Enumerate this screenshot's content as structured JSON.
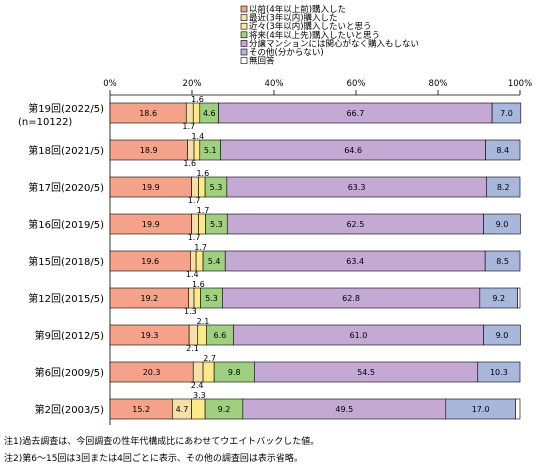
{
  "chart_data": {
    "type": "bar",
    "orientation": "horizontal",
    "stacked": true,
    "percent_scale": true,
    "xlim": [
      0,
      100
    ],
    "x_ticks": [
      "0%",
      "20%",
      "40%",
      "60%",
      "80%",
      "100%"
    ],
    "x_tick_values": [
      0,
      20,
      40,
      60,
      80,
      100
    ],
    "categories": [
      [
        "第19回(2022/5)",
        "(n=10122)"
      ],
      [
        "第18回(2021/5)"
      ],
      [
        "第17回(2020/5)"
      ],
      [
        "第16回(2019/5)"
      ],
      [
        "第15回(2018/5)"
      ],
      [
        "第12回(2015/5)"
      ],
      [
        "第9回(2012/5)"
      ],
      [
        "第6回(2009/5)"
      ],
      [
        "第2回(2003/5)"
      ]
    ],
    "series": [
      {
        "name": "以前(4年以上前)購入した",
        "color": "#f4a28a",
        "values": [
          18.6,
          18.9,
          19.9,
          19.9,
          19.6,
          19.2,
          19.3,
          20.3,
          15.2
        ],
        "labels": [
          "18.6",
          "18.9",
          "19.9",
          "19.9",
          "19.6",
          "19.2",
          "19.3",
          "20.3",
          "15.2"
        ]
      },
      {
        "name": "最近(3年以内)購入した",
        "color": "#f7e0a8",
        "values": [
          1.7,
          1.6,
          1.7,
          1.7,
          1.4,
          1.3,
          2.1,
          2.4,
          4.7
        ],
        "labels": [
          "1.7",
          "1.6",
          "1.7",
          "1.7",
          "1.4",
          "1.3",
          "2.1",
          "2.4",
          "4.7"
        ]
      },
      {
        "name": "近々(3年以内)購入したいと思う",
        "color": "#fde98a",
        "values": [
          1.6,
          1.4,
          1.6,
          1.7,
          1.7,
          1.6,
          2.1,
          2.7,
          3.3
        ],
        "labels": [
          "1.6",
          "1.4",
          "1.6",
          "1.7",
          "1.7",
          "1.6",
          "2.1",
          "2.7",
          "3.3"
        ]
      },
      {
        "name": "将来(4年以上先)購入したいと思う",
        "color": "#9ed07f",
        "values": [
          4.6,
          5.1,
          5.3,
          5.3,
          5.4,
          5.3,
          6.6,
          9.8,
          9.2
        ],
        "labels": [
          "4.6",
          "5.1",
          "5.3",
          "5.3",
          "5.4",
          "5.3",
          "6.6",
          "9.8",
          "9.2"
        ]
      },
      {
        "name": "分譲マンションには関心がなく購入もしない",
        "color": "#c4a9d4",
        "values": [
          66.7,
          64.6,
          63.3,
          62.5,
          63.4,
          62.8,
          61.0,
          54.5,
          49.5
        ],
        "labels": [
          "66.7",
          "64.6",
          "63.3",
          "62.5",
          "63.4",
          "62.8",
          "61.0",
          "54.5",
          "49.5"
        ]
      },
      {
        "name": "その他(分からない)",
        "color": "#a8b7db",
        "values": [
          7.0,
          8.4,
          8.2,
          9.0,
          8.5,
          9.2,
          9.0,
          10.3,
          17.0
        ],
        "labels": [
          "7.0",
          "8.4",
          "8.2",
          "9.0",
          "8.5",
          "9.2",
          "9.0",
          "10.3",
          "17.0"
        ]
      },
      {
        "name": "無回答",
        "color": "#ffffff",
        "values": [
          0,
          0,
          0,
          0,
          0,
          0,
          0,
          0,
          0
        ],
        "labels": [
          "",
          "",
          "",
          "",
          "",
          "",
          "",
          "",
          ""
        ]
      }
    ],
    "notes": [
      "注1)過去調査は、今回調査の性年代構成比にあわせてウエイトバックした値。",
      "注2)第6～15回は3回または4回ごとに表示、その他の調査回は表示省略。"
    ],
    "grid": false,
    "legend_position": "top-right"
  }
}
